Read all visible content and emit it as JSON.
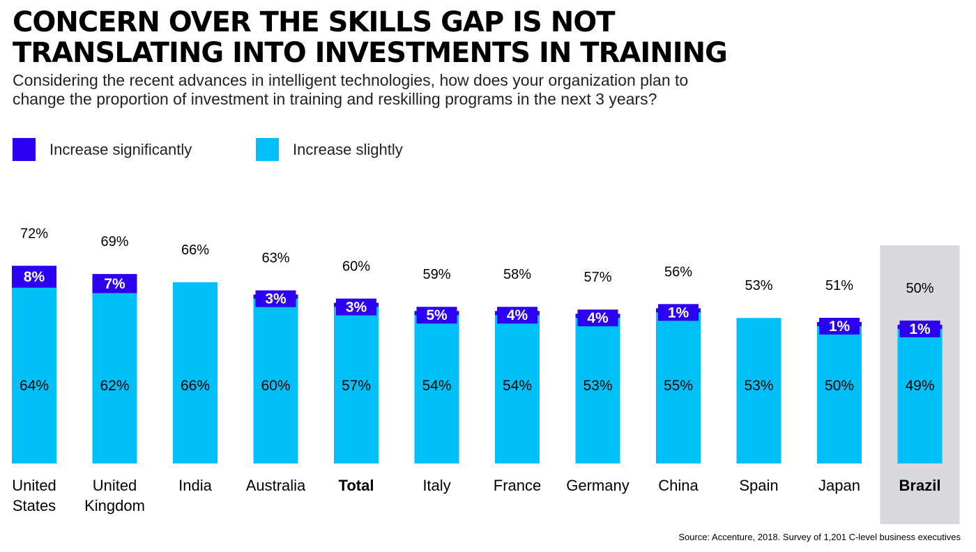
{
  "title_lines": [
    "CONCERN OVER THE SKILLS GAP IS NOT",
    "TRANSLATING INTO INVESTMENTS IN TRAINING"
  ],
  "subtitle_lines": [
    "Considering the recent advances in intelligent technologies, how does your organization plan to",
    "change the proportion of investment in training and reskilling programs in the next 3 years?"
  ],
  "legend": [
    {
      "label": "Increase significantly",
      "color": "#2c00f0"
    },
    {
      "label": "Increase slightly",
      "color": "#00c0f8"
    }
  ],
  "source": "Source: Accenture, 2018. Survey of 1,201 C-level business executives",
  "highlight_color": "#d9d9dd",
  "chart_data": {
    "type": "bar",
    "stacked": true,
    "categories": [
      [
        "United",
        "States"
      ],
      [
        "United",
        "Kingdom"
      ],
      [
        "India"
      ],
      [
        "Australia"
      ],
      [
        "Total"
      ],
      [
        "Italy"
      ],
      [
        "France"
      ],
      [
        "Germany"
      ],
      [
        "China"
      ],
      [
        "Spain"
      ],
      [
        "Japan"
      ],
      [
        "Brazil"
      ]
    ],
    "bold_categories": [
      "Total",
      "Brazil"
    ],
    "highlighted_category": "Brazil",
    "totals": [
      72,
      69,
      66,
      63,
      60,
      59,
      58,
      57,
      56,
      53,
      51,
      50
    ],
    "total_labels": [
      "72%",
      "69%",
      "66%",
      "63%",
      "60%",
      "59%",
      "58%",
      "57%",
      "56%",
      "53%",
      "51%",
      "50%"
    ],
    "series": [
      {
        "name": "Increase slightly",
        "color": "#00c0f8",
        "label_color": "#000000",
        "values": [
          64,
          62,
          66,
          60,
          57,
          54,
          54,
          53,
          55,
          53,
          50,
          49
        ],
        "labels": [
          "64%",
          "62%",
          "66%",
          "60%",
          "57%",
          "54%",
          "54%",
          "53%",
          "55%",
          "53%",
          "50%",
          "49%"
        ]
      },
      {
        "name": "Increase significantly",
        "color": "#2c00f0",
        "label_color": "#ffffff",
        "values": [
          8,
          7,
          0,
          3,
          3,
          5,
          4,
          4,
          1,
          0,
          1,
          1
        ],
        "labels": [
          "8%",
          "7%",
          "",
          "3%",
          "3%",
          "5%",
          "4%",
          "4%",
          "1%",
          "",
          "1%",
          "1%"
        ]
      }
    ],
    "ylim": [
      0,
      72
    ],
    "xlabel": "",
    "ylabel": "",
    "grid": false
  }
}
